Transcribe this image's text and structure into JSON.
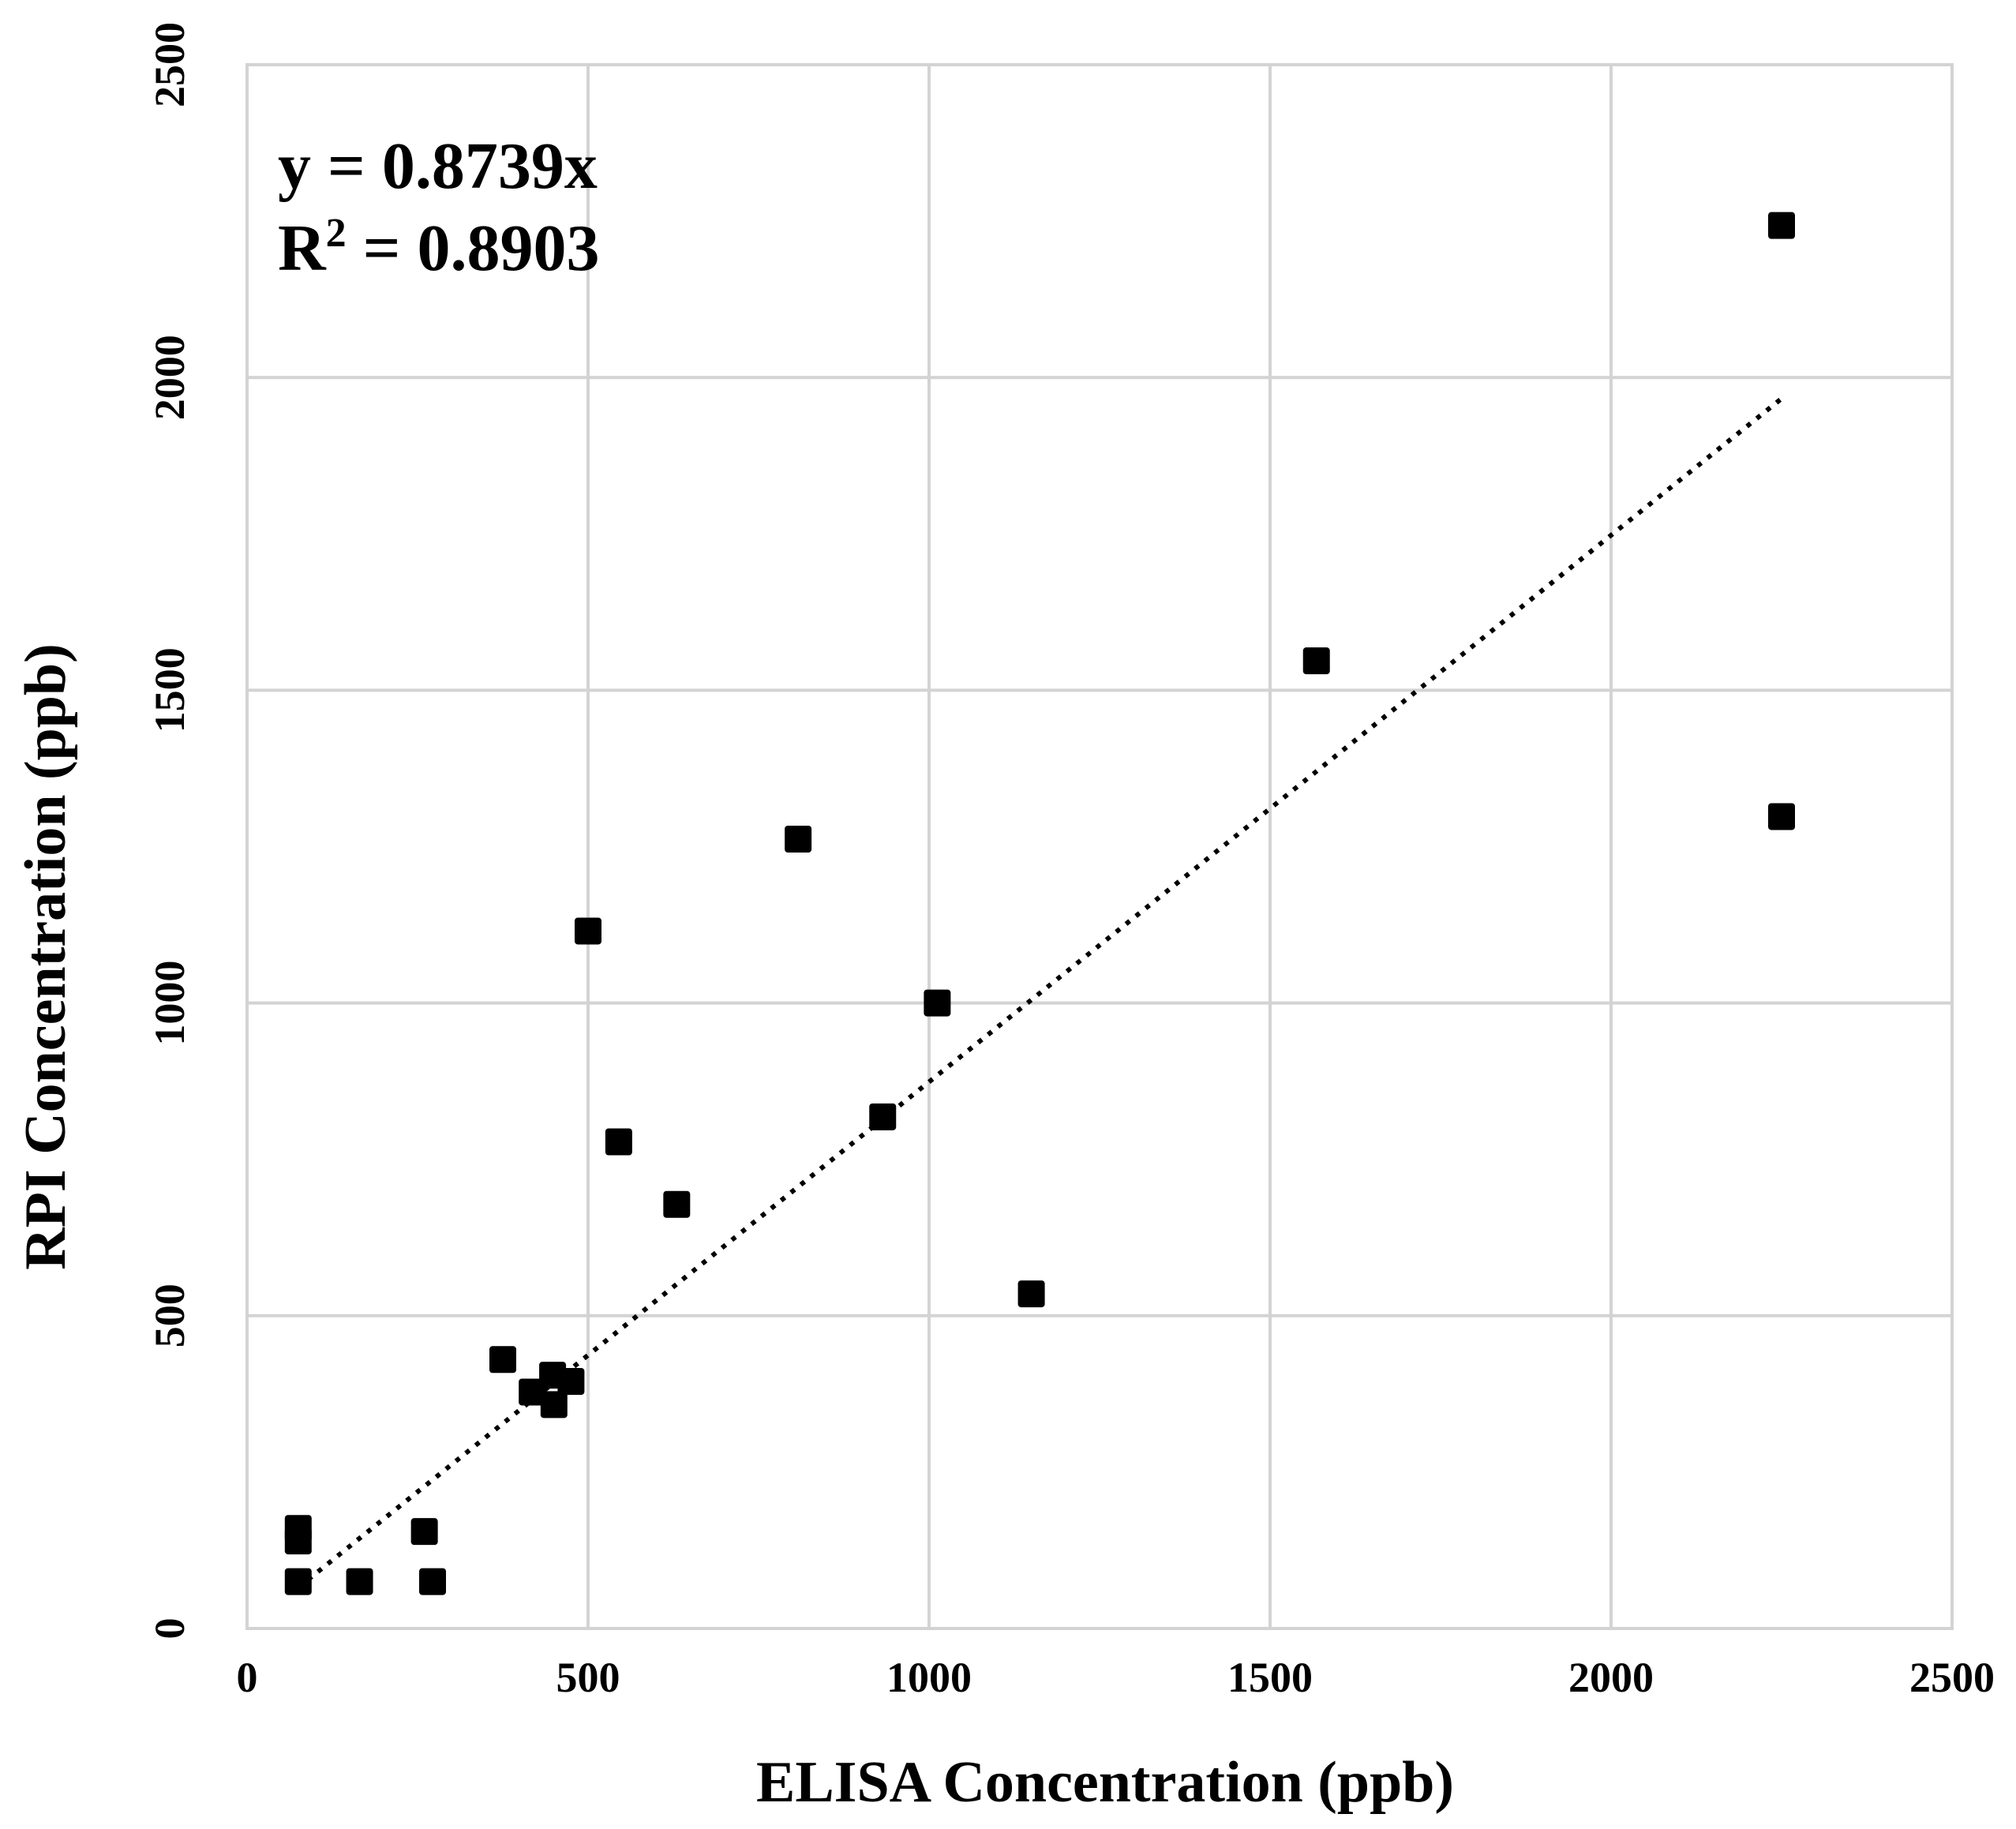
{
  "chart_data": {
    "type": "scatter",
    "title": "",
    "xlabel": "ELISA Concentration (ppb)",
    "ylabel": "RPI  Concentration (ppb)",
    "xlim": [
      0,
      2500
    ],
    "ylim": [
      0,
      2500
    ],
    "xticks": [
      "0",
      "500",
      "1000",
      "1500",
      "2000",
      "2500"
    ],
    "yticks": [
      "0",
      "500",
      "1000",
      "1500",
      "2000",
      "2500"
    ],
    "xtick_values": [
      0,
      500,
      1000,
      1500,
      2000,
      2500
    ],
    "ytick_values": [
      0,
      500,
      1000,
      1500,
      2000,
      2500
    ],
    "grid": true,
    "marker": "square",
    "color": "#000000",
    "series": [
      {
        "name": "Samples",
        "points": [
          {
            "x": 75,
            "y": 75
          },
          {
            "x": 75,
            "y": 140
          },
          {
            "x": 75,
            "y": 160
          },
          {
            "x": 165,
            "y": 75
          },
          {
            "x": 260,
            "y": 155
          },
          {
            "x": 272,
            "y": 75
          },
          {
            "x": 375,
            "y": 430
          },
          {
            "x": 418,
            "y": 378
          },
          {
            "x": 448,
            "y": 405
          },
          {
            "x": 450,
            "y": 358
          },
          {
            "x": 475,
            "y": 395
          },
          {
            "x": 500,
            "y": 1115
          },
          {
            "x": 545,
            "y": 778
          },
          {
            "x": 630,
            "y": 678
          },
          {
            "x": 808,
            "y": 1262
          },
          {
            "x": 932,
            "y": 818
          },
          {
            "x": 1012,
            "y": 1000
          },
          {
            "x": 1150,
            "y": 535
          },
          {
            "x": 1568,
            "y": 1547
          },
          {
            "x": 2250,
            "y": 2243
          },
          {
            "x": 2250,
            "y": 1298
          }
        ]
      }
    ],
    "trendline": {
      "type": "linear",
      "slope": 0.8739,
      "intercept": 0,
      "x_range": [
        75,
        2250
      ],
      "equation_text": "y = 0.8739x",
      "r2_prefix": "R",
      "r2_sup": "2",
      "r2_suffix": " = 0.8903"
    }
  }
}
